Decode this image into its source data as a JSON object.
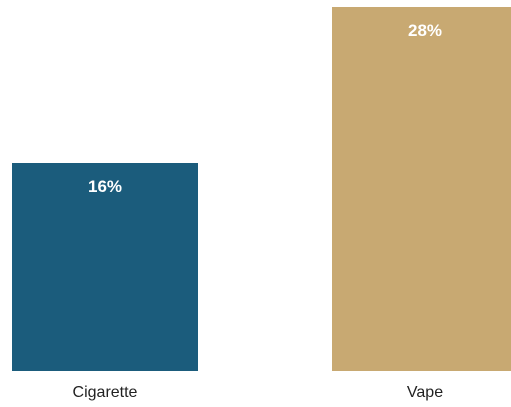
{
  "chart_data": {
    "type": "bar",
    "categories": [
      "Cigarette",
      "Vape"
    ],
    "values": [
      16,
      28
    ],
    "value_labels": [
      "16%",
      "28%"
    ],
    "colors": [
      "#1b5c7c",
      "#c8a972"
    ],
    "title": "",
    "xlabel": "",
    "ylabel": "",
    "ylim": [
      0,
      28
    ],
    "grid": false,
    "legend": "none"
  }
}
